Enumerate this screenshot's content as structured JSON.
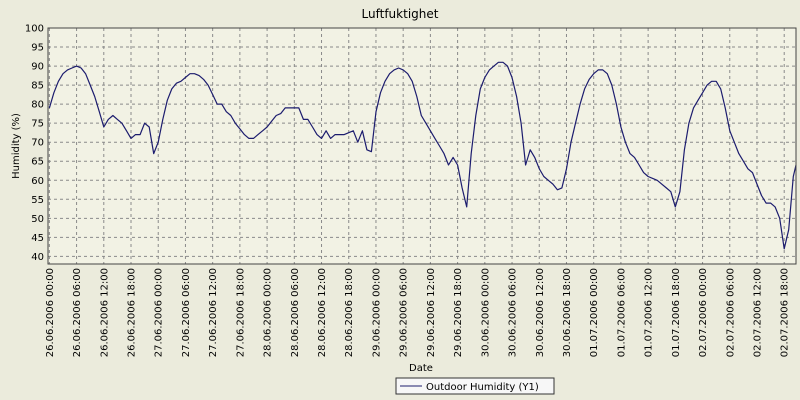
{
  "chart_data": {
    "type": "line",
    "title": "Luftfuktighet",
    "xlabel": "Date",
    "ylabel": "Humidity (%)",
    "ylim": [
      38,
      100
    ],
    "yticks": [
      40,
      45,
      50,
      55,
      60,
      65,
      70,
      75,
      80,
      85,
      90,
      95,
      100
    ],
    "xlim": [
      -0.3,
      164.6
    ],
    "x_unit": "hours since 26.06.2006 00:00",
    "xtick_labels": [
      "26.06.2006 00:00",
      "26.06.2006 06:00",
      "26.06.2006 12:00",
      "26.06.2006 18:00",
      "27.06.2006 00:00",
      "27.06.2006 06:00",
      "27.06.2006 12:00",
      "27.06.2006 18:00",
      "28.06.2006 00:00",
      "28.06.2006 06:00",
      "28.06.2006 12:00",
      "28.06.2006 18:00",
      "29.06.2006 00:00",
      "29.06.2006 06:00",
      "29.06.2006 12:00",
      "29.06.2006 18:00",
      "30.06.2006 00:00",
      "30.06.2006 06:00",
      "30.06.2006 12:00",
      "30.06.2006 18:00",
      "01.07.2006 00:00",
      "01.07.2006 06:00",
      "01.07.2006 12:00",
      "01.07.2006 18:00",
      "02.07.2006 00:00",
      "02.07.2006 06:00",
      "02.07.2006 12:00",
      "02.07.2006 18:00"
    ],
    "grid": true,
    "legend_position": "bottom-center",
    "series": [
      {
        "name": "Outdoor Humidity (Y1)",
        "color": "#1c1c6e",
        "points": [
          [
            0,
            79
          ],
          [
            1,
            83
          ],
          [
            2,
            86
          ],
          [
            3,
            88
          ],
          [
            4,
            89
          ],
          [
            5,
            89.5
          ],
          [
            6,
            90
          ],
          [
            7,
            89.5
          ],
          [
            8,
            88
          ],
          [
            9,
            85
          ],
          [
            10,
            82
          ],
          [
            11,
            78
          ],
          [
            12,
            74
          ],
          [
            13,
            76
          ],
          [
            14,
            77
          ],
          [
            15,
            76
          ],
          [
            16,
            75
          ],
          [
            17,
            73
          ],
          [
            18,
            71
          ],
          [
            19,
            72
          ],
          [
            20,
            72
          ],
          [
            21,
            75
          ],
          [
            22,
            74
          ],
          [
            23,
            67
          ],
          [
            24,
            70
          ],
          [
            25,
            76
          ],
          [
            26,
            81
          ],
          [
            27,
            84
          ],
          [
            28,
            85.5
          ],
          [
            29,
            86
          ],
          [
            30,
            87
          ],
          [
            31,
            88
          ],
          [
            32,
            88
          ],
          [
            33,
            87.5
          ],
          [
            34,
            86.5
          ],
          [
            35,
            85
          ],
          [
            36,
            82.5
          ],
          [
            37,
            80
          ],
          [
            38,
            80
          ],
          [
            39,
            78
          ],
          [
            40,
            77
          ],
          [
            41,
            75
          ],
          [
            42,
            73.5
          ],
          [
            43,
            72
          ],
          [
            44,
            71
          ],
          [
            45,
            71
          ],
          [
            46,
            72
          ],
          [
            47,
            73
          ],
          [
            48,
            74
          ],
          [
            49,
            75.5
          ],
          [
            50,
            77
          ],
          [
            51,
            77.5
          ],
          [
            52,
            79
          ],
          [
            53,
            79
          ],
          [
            54,
            79
          ],
          [
            55,
            79
          ],
          [
            56,
            76
          ],
          [
            57,
            76
          ],
          [
            58,
            74
          ],
          [
            59,
            72
          ],
          [
            60,
            71
          ],
          [
            61,
            73
          ],
          [
            62,
            71
          ],
          [
            63,
            72
          ],
          [
            64,
            72
          ],
          [
            65,
            72
          ],
          [
            66,
            72.5
          ],
          [
            67,
            73
          ],
          [
            68,
            70
          ],
          [
            69,
            73
          ],
          [
            70,
            68
          ],
          [
            71,
            67.5
          ],
          [
            72,
            78
          ],
          [
            73,
            83
          ],
          [
            74,
            86
          ],
          [
            75,
            88
          ],
          [
            76,
            89
          ],
          [
            77,
            89.5
          ],
          [
            78,
            89
          ],
          [
            79,
            88
          ],
          [
            80,
            86
          ],
          [
            81,
            82
          ],
          [
            82,
            77
          ],
          [
            83,
            75
          ],
          [
            84,
            73
          ],
          [
            85,
            71
          ],
          [
            86,
            69
          ],
          [
            87,
            67
          ],
          [
            88,
            64
          ],
          [
            89,
            66
          ],
          [
            90,
            64
          ],
          [
            91,
            58
          ],
          [
            92,
            53
          ],
          [
            93,
            67
          ],
          [
            94,
            77
          ],
          [
            95,
            84
          ],
          [
            96,
            87
          ],
          [
            97,
            89
          ],
          [
            98,
            90
          ],
          [
            99,
            91
          ],
          [
            100,
            91
          ],
          [
            101,
            90
          ],
          [
            102,
            87
          ],
          [
            103,
            82
          ],
          [
            104,
            75
          ],
          [
            105,
            64
          ],
          [
            106,
            68
          ],
          [
            107,
            66
          ],
          [
            108,
            63
          ],
          [
            109,
            61
          ],
          [
            110,
            60
          ],
          [
            111,
            59
          ],
          [
            112,
            57.5
          ],
          [
            113,
            58
          ],
          [
            114,
            63
          ],
          [
            115,
            70
          ],
          [
            116,
            75
          ],
          [
            117,
            80
          ],
          [
            118,
            84
          ],
          [
            119,
            86.5
          ],
          [
            120,
            88
          ],
          [
            121,
            89
          ],
          [
            122,
            89
          ],
          [
            123,
            88
          ],
          [
            124,
            85
          ],
          [
            125,
            80
          ],
          [
            126,
            74
          ],
          [
            127,
            70
          ],
          [
            128,
            67
          ],
          [
            129,
            66
          ],
          [
            130,
            64
          ],
          [
            131,
            62
          ],
          [
            132,
            61
          ],
          [
            133,
            60.5
          ],
          [
            134,
            60
          ],
          [
            135,
            59
          ],
          [
            136,
            58
          ],
          [
            137,
            57
          ],
          [
            138,
            53
          ],
          [
            139,
            57
          ],
          [
            140,
            68
          ],
          [
            141,
            75
          ],
          [
            142,
            79
          ],
          [
            143,
            81
          ],
          [
            144,
            83
          ],
          [
            145,
            85
          ],
          [
            146,
            86
          ],
          [
            147,
            86
          ],
          [
            148,
            84
          ],
          [
            149,
            79
          ],
          [
            150,
            73
          ],
          [
            151,
            70
          ],
          [
            152,
            67
          ],
          [
            153,
            65
          ],
          [
            154,
            63
          ],
          [
            155,
            62
          ],
          [
            156,
            59
          ],
          [
            157,
            56
          ],
          [
            158,
            54
          ],
          [
            159,
            54
          ],
          [
            160,
            53
          ],
          [
            161,
            50
          ],
          [
            162,
            42
          ],
          [
            163,
            47
          ],
          [
            164,
            61
          ],
          [
            164.6,
            64
          ]
        ]
      }
    ]
  }
}
